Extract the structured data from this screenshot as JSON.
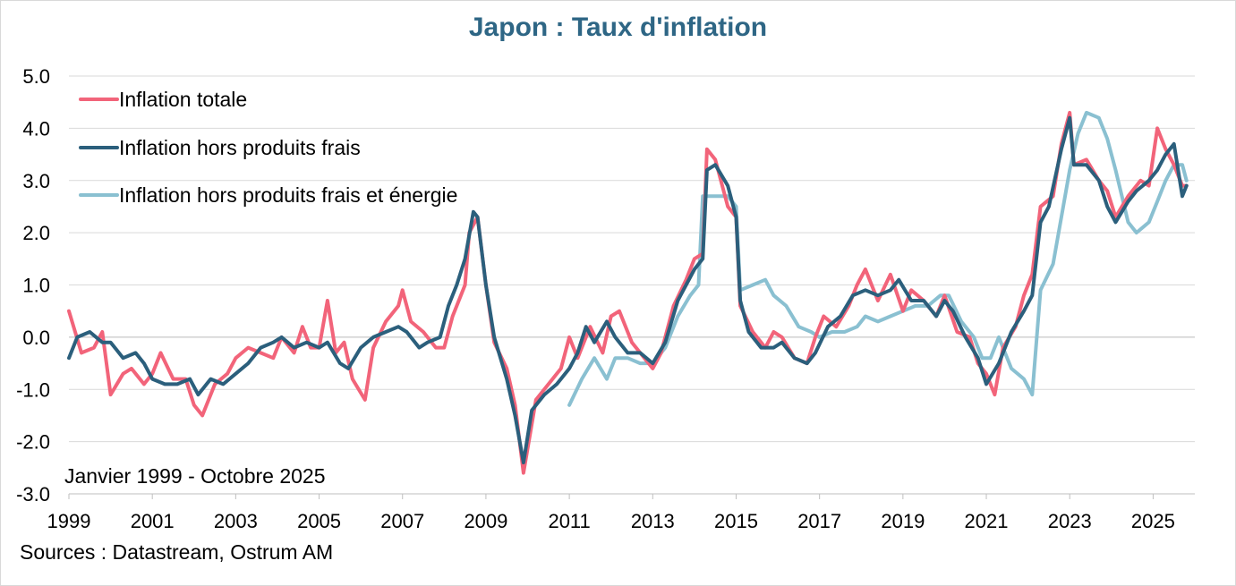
{
  "chart_data": {
    "type": "line",
    "title": "Japon : Taux d'inflation",
    "subtitle": "Janvier 1999 - Octobre 2025",
    "source": "Sources : Datastream, Ostrum AM",
    "ylim": [
      -3.0,
      5.0
    ],
    "xlim": [
      1999.0,
      2026.0
    ],
    "yticks": [
      "5.0",
      "4.0",
      "3.0",
      "2.0",
      "1.0",
      "0.0",
      "-1.0",
      "-2.0",
      "-3.0"
    ],
    "xticks": [
      "1999",
      "2001",
      "2003",
      "2005",
      "2007",
      "2009",
      "2011",
      "2013",
      "2015",
      "2017",
      "2019",
      "2021",
      "2023",
      "2025"
    ],
    "grid": "horizontal",
    "legend_position": "top-left",
    "series": [
      {
        "name": "Inflation totale",
        "color": "#f2647a",
        "points": [
          [
            1999.0,
            0.5
          ],
          [
            1999.3,
            -0.3
          ],
          [
            1999.6,
            -0.2
          ],
          [
            1999.8,
            0.1
          ],
          [
            2000.0,
            -1.1
          ],
          [
            2000.3,
            -0.7
          ],
          [
            2000.5,
            -0.6
          ],
          [
            2000.8,
            -0.9
          ],
          [
            2001.0,
            -0.7
          ],
          [
            2001.2,
            -0.3
          ],
          [
            2001.5,
            -0.8
          ],
          [
            2001.8,
            -0.8
          ],
          [
            2002.0,
            -1.3
          ],
          [
            2002.2,
            -1.5
          ],
          [
            2002.5,
            -0.9
          ],
          [
            2002.8,
            -0.7
          ],
          [
            2003.0,
            -0.4
          ],
          [
            2003.3,
            -0.2
          ],
          [
            2003.6,
            -0.3
          ],
          [
            2003.9,
            -0.4
          ],
          [
            2004.1,
            0.0
          ],
          [
            2004.4,
            -0.3
          ],
          [
            2004.6,
            0.2
          ],
          [
            2004.8,
            -0.2
          ],
          [
            2005.0,
            -0.2
          ],
          [
            2005.2,
            0.7
          ],
          [
            2005.4,
            -0.3
          ],
          [
            2005.6,
            -0.1
          ],
          [
            2005.8,
            -0.8
          ],
          [
            2006.1,
            -1.2
          ],
          [
            2006.3,
            -0.2
          ],
          [
            2006.6,
            0.3
          ],
          [
            2006.9,
            0.6
          ],
          [
            2007.0,
            0.9
          ],
          [
            2007.2,
            0.3
          ],
          [
            2007.5,
            0.1
          ],
          [
            2007.8,
            -0.2
          ],
          [
            2008.0,
            -0.2
          ],
          [
            2008.2,
            0.4
          ],
          [
            2008.5,
            1.0
          ],
          [
            2008.6,
            2.0
          ],
          [
            2008.8,
            2.3
          ],
          [
            2009.0,
            1.0
          ],
          [
            2009.2,
            -0.1
          ],
          [
            2009.5,
            -0.6
          ],
          [
            2009.7,
            -1.3
          ],
          [
            2009.9,
            -2.6
          ],
          [
            2010.2,
            -1.2
          ],
          [
            2010.5,
            -0.9
          ],
          [
            2010.8,
            -0.6
          ],
          [
            2011.0,
            0.0
          ],
          [
            2011.2,
            -0.4
          ],
          [
            2011.5,
            0.2
          ],
          [
            2011.8,
            -0.3
          ],
          [
            2012.0,
            0.4
          ],
          [
            2012.2,
            0.5
          ],
          [
            2012.5,
            -0.1
          ],
          [
            2012.8,
            -0.4
          ],
          [
            2013.0,
            -0.6
          ],
          [
            2013.2,
            -0.3
          ],
          [
            2013.5,
            0.6
          ],
          [
            2013.8,
            1.1
          ],
          [
            2014.0,
            1.5
          ],
          [
            2014.2,
            1.6
          ],
          [
            2014.3,
            3.6
          ],
          [
            2014.5,
            3.4
          ],
          [
            2014.8,
            2.5
          ],
          [
            2015.0,
            2.3
          ],
          [
            2015.1,
            0.6
          ],
          [
            2015.4,
            0.1
          ],
          [
            2015.7,
            -0.2
          ],
          [
            2015.9,
            0.1
          ],
          [
            2016.1,
            0.0
          ],
          [
            2016.4,
            -0.4
          ],
          [
            2016.7,
            -0.5
          ],
          [
            2016.9,
            0.0
          ],
          [
            2017.1,
            0.4
          ],
          [
            2017.4,
            0.2
          ],
          [
            2017.7,
            0.6
          ],
          [
            2017.9,
            1.0
          ],
          [
            2018.1,
            1.3
          ],
          [
            2018.4,
            0.7
          ],
          [
            2018.7,
            1.2
          ],
          [
            2019.0,
            0.5
          ],
          [
            2019.2,
            0.9
          ],
          [
            2019.5,
            0.7
          ],
          [
            2019.8,
            0.4
          ],
          [
            2020.0,
            0.8
          ],
          [
            2020.3,
            0.1
          ],
          [
            2020.6,
            0.0
          ],
          [
            2020.8,
            -0.5
          ],
          [
            2021.0,
            -0.7
          ],
          [
            2021.2,
            -1.1
          ],
          [
            2021.4,
            -0.2
          ],
          [
            2021.7,
            0.2
          ],
          [
            2021.9,
            0.8
          ],
          [
            2022.1,
            1.2
          ],
          [
            2022.3,
            2.5
          ],
          [
            2022.6,
            2.7
          ],
          [
            2022.8,
            3.7
          ],
          [
            2023.0,
            4.3
          ],
          [
            2023.1,
            3.3
          ],
          [
            2023.4,
            3.4
          ],
          [
            2023.7,
            3.0
          ],
          [
            2023.9,
            2.8
          ],
          [
            2024.1,
            2.3
          ],
          [
            2024.4,
            2.7
          ],
          [
            2024.7,
            3.0
          ],
          [
            2024.9,
            2.9
          ],
          [
            2025.1,
            4.0
          ],
          [
            2025.3,
            3.6
          ],
          [
            2025.5,
            3.3
          ],
          [
            2025.7,
            2.9
          ],
          [
            2025.8,
            2.9
          ]
        ]
      },
      {
        "name": "Inflation hors produits frais",
        "color": "#2b5f7c",
        "points": [
          [
            1999.0,
            -0.4
          ],
          [
            1999.2,
            0.0
          ],
          [
            1999.5,
            0.1
          ],
          [
            1999.8,
            -0.1
          ],
          [
            2000.0,
            -0.1
          ],
          [
            2000.3,
            -0.4
          ],
          [
            2000.6,
            -0.3
          ],
          [
            2000.8,
            -0.5
          ],
          [
            2001.0,
            -0.8
          ],
          [
            2001.3,
            -0.9
          ],
          [
            2001.6,
            -0.9
          ],
          [
            2001.9,
            -0.8
          ],
          [
            2002.1,
            -1.1
          ],
          [
            2002.4,
            -0.8
          ],
          [
            2002.7,
            -0.9
          ],
          [
            2003.0,
            -0.7
          ],
          [
            2003.3,
            -0.5
          ],
          [
            2003.6,
            -0.2
          ],
          [
            2003.9,
            -0.1
          ],
          [
            2004.1,
            0.0
          ],
          [
            2004.4,
            -0.2
          ],
          [
            2004.7,
            -0.1
          ],
          [
            2005.0,
            -0.2
          ],
          [
            2005.2,
            -0.1
          ],
          [
            2005.5,
            -0.5
          ],
          [
            2005.7,
            -0.6
          ],
          [
            2006.0,
            -0.2
          ],
          [
            2006.3,
            0.0
          ],
          [
            2006.6,
            0.1
          ],
          [
            2006.9,
            0.2
          ],
          [
            2007.1,
            0.1
          ],
          [
            2007.4,
            -0.2
          ],
          [
            2007.6,
            -0.1
          ],
          [
            2007.9,
            0.0
          ],
          [
            2008.1,
            0.6
          ],
          [
            2008.3,
            1.0
          ],
          [
            2008.5,
            1.5
          ],
          [
            2008.7,
            2.4
          ],
          [
            2008.8,
            2.3
          ],
          [
            2009.0,
            1.0
          ],
          [
            2009.2,
            0.0
          ],
          [
            2009.5,
            -0.8
          ],
          [
            2009.7,
            -1.5
          ],
          [
            2009.9,
            -2.4
          ],
          [
            2010.1,
            -1.4
          ],
          [
            2010.4,
            -1.1
          ],
          [
            2010.7,
            -0.9
          ],
          [
            2011.0,
            -0.6
          ],
          [
            2011.2,
            -0.3
          ],
          [
            2011.4,
            0.2
          ],
          [
            2011.6,
            -0.1
          ],
          [
            2011.9,
            0.3
          ],
          [
            2012.1,
            0.0
          ],
          [
            2012.4,
            -0.3
          ],
          [
            2012.7,
            -0.3
          ],
          [
            2013.0,
            -0.5
          ],
          [
            2013.3,
            -0.1
          ],
          [
            2013.6,
            0.7
          ],
          [
            2013.8,
            1.0
          ],
          [
            2014.0,
            1.3
          ],
          [
            2014.2,
            1.5
          ],
          [
            2014.3,
            3.2
          ],
          [
            2014.5,
            3.3
          ],
          [
            2014.8,
            2.9
          ],
          [
            2015.0,
            2.3
          ],
          [
            2015.1,
            0.7
          ],
          [
            2015.3,
            0.1
          ],
          [
            2015.6,
            -0.2
          ],
          [
            2015.9,
            -0.2
          ],
          [
            2016.1,
            -0.1
          ],
          [
            2016.4,
            -0.4
          ],
          [
            2016.7,
            -0.5
          ],
          [
            2016.9,
            -0.3
          ],
          [
            2017.2,
            0.2
          ],
          [
            2017.5,
            0.4
          ],
          [
            2017.8,
            0.8
          ],
          [
            2018.1,
            0.9
          ],
          [
            2018.4,
            0.8
          ],
          [
            2018.7,
            0.9
          ],
          [
            2018.9,
            1.1
          ],
          [
            2019.2,
            0.7
          ],
          [
            2019.5,
            0.7
          ],
          [
            2019.8,
            0.4
          ],
          [
            2020.0,
            0.7
          ],
          [
            2020.2,
            0.5
          ],
          [
            2020.5,
            0.0
          ],
          [
            2020.8,
            -0.4
          ],
          [
            2021.0,
            -0.9
          ],
          [
            2021.3,
            -0.5
          ],
          [
            2021.6,
            0.1
          ],
          [
            2021.9,
            0.5
          ],
          [
            2022.1,
            0.8
          ],
          [
            2022.3,
            2.2
          ],
          [
            2022.5,
            2.5
          ],
          [
            2022.8,
            3.6
          ],
          [
            2023.0,
            4.2
          ],
          [
            2023.1,
            3.3
          ],
          [
            2023.4,
            3.3
          ],
          [
            2023.7,
            3.0
          ],
          [
            2023.9,
            2.5
          ],
          [
            2024.1,
            2.2
          ],
          [
            2024.4,
            2.6
          ],
          [
            2024.6,
            2.8
          ],
          [
            2024.9,
            3.0
          ],
          [
            2025.1,
            3.2
          ],
          [
            2025.3,
            3.5
          ],
          [
            2025.5,
            3.7
          ],
          [
            2025.7,
            2.7
          ],
          [
            2025.8,
            2.9
          ]
        ]
      },
      {
        "name": "Inflation hors produits frais et énergie",
        "color": "#8ac0d1",
        "points": [
          [
            2011.0,
            -1.3
          ],
          [
            2011.3,
            -0.8
          ],
          [
            2011.6,
            -0.4
          ],
          [
            2011.9,
            -0.8
          ],
          [
            2012.1,
            -0.4
          ],
          [
            2012.4,
            -0.4
          ],
          [
            2012.7,
            -0.5
          ],
          [
            2013.0,
            -0.5
          ],
          [
            2013.3,
            -0.2
          ],
          [
            2013.6,
            0.4
          ],
          [
            2013.9,
            0.8
          ],
          [
            2014.1,
            1.0
          ],
          [
            2014.2,
            2.7
          ],
          [
            2014.5,
            2.7
          ],
          [
            2014.8,
            2.7
          ],
          [
            2015.0,
            2.5
          ],
          [
            2015.1,
            0.9
          ],
          [
            2015.4,
            1.0
          ],
          [
            2015.7,
            1.1
          ],
          [
            2015.9,
            0.8
          ],
          [
            2016.2,
            0.6
          ],
          [
            2016.5,
            0.2
          ],
          [
            2016.8,
            0.1
          ],
          [
            2017.0,
            0.0
          ],
          [
            2017.3,
            0.1
          ],
          [
            2017.6,
            0.1
          ],
          [
            2017.9,
            0.2
          ],
          [
            2018.1,
            0.4
          ],
          [
            2018.4,
            0.3
          ],
          [
            2018.7,
            0.4
          ],
          [
            2019.0,
            0.5
          ],
          [
            2019.3,
            0.6
          ],
          [
            2019.6,
            0.6
          ],
          [
            2019.9,
            0.8
          ],
          [
            2020.1,
            0.8
          ],
          [
            2020.4,
            0.3
          ],
          [
            2020.7,
            0.0
          ],
          [
            2020.9,
            -0.4
          ],
          [
            2021.1,
            -0.4
          ],
          [
            2021.3,
            0.0
          ],
          [
            2021.6,
            -0.6
          ],
          [
            2021.9,
            -0.8
          ],
          [
            2022.1,
            -1.1
          ],
          [
            2022.3,
            0.9
          ],
          [
            2022.6,
            1.4
          ],
          [
            2022.8,
            2.3
          ],
          [
            2023.0,
            3.2
          ],
          [
            2023.2,
            3.9
          ],
          [
            2023.4,
            4.3
          ],
          [
            2023.7,
            4.2
          ],
          [
            2023.9,
            3.8
          ],
          [
            2024.1,
            3.2
          ],
          [
            2024.4,
            2.2
          ],
          [
            2024.6,
            2.0
          ],
          [
            2024.9,
            2.2
          ],
          [
            2025.1,
            2.6
          ],
          [
            2025.3,
            3.0
          ],
          [
            2025.5,
            3.3
          ],
          [
            2025.7,
            3.3
          ],
          [
            2025.8,
            3.0
          ]
        ]
      }
    ]
  }
}
